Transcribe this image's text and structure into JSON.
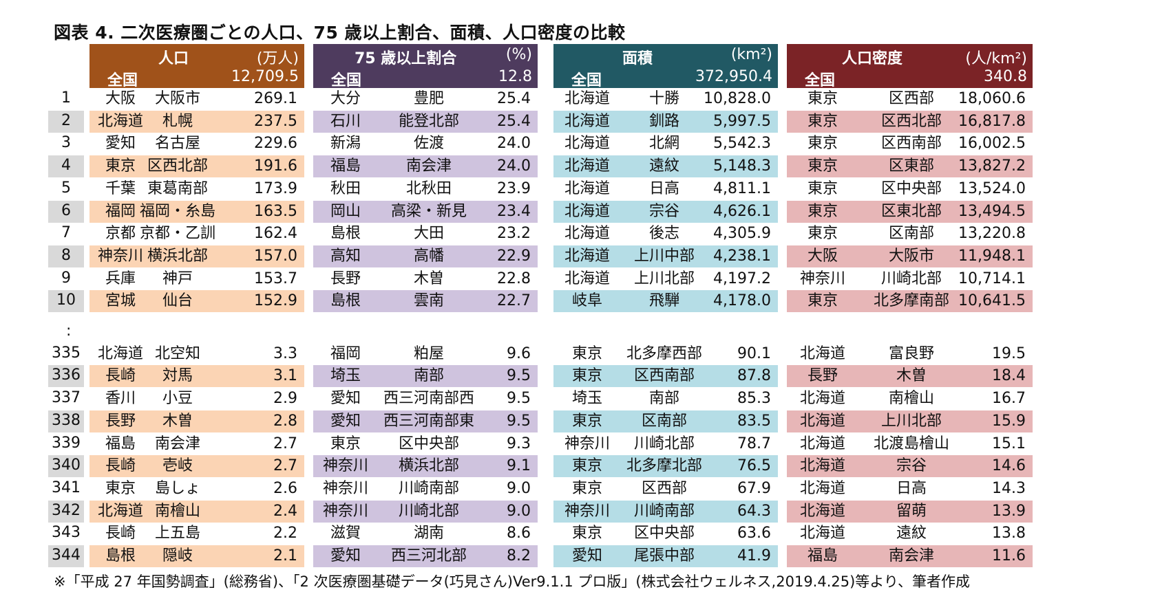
{
  "title": "図表 4.  二次医療圏ごとの人口、75 歳以上割合、面積、人口密度の比較",
  "colors": {
    "pop_header": "#a0521a",
    "pop_shade": "#fbd4b4",
    "age_header": "#4e3b5e",
    "age_shade": "#cfc3de",
    "area_header": "#215964",
    "area_shade": "#b5dde6",
    "dens_header": "#7b2326",
    "dens_shade": "#e7b6b7"
  },
  "headers": {
    "population": {
      "label": "人口",
      "unit": "(万人)",
      "national_label": "全国",
      "national_value": "12,709.5"
    },
    "age75": {
      "label": "75 歳以上割合",
      "unit": "(%)",
      "national_label": "全国",
      "national_value": "12.8"
    },
    "area": {
      "label": "面積",
      "unit": "(km²)",
      "national_label": "全国",
      "national_value": "372,950.4"
    },
    "density": {
      "label": "人口密度",
      "unit": "(人/km²)",
      "national_label": "全国",
      "national_value": "340.8"
    }
  },
  "ellipsis": ":",
  "rows": [
    {
      "rank": "1",
      "pop": [
        "大阪",
        "大阪市",
        "269.1"
      ],
      "age": [
        "大分",
        "豊肥",
        "25.4"
      ],
      "area": [
        "北海道",
        "十勝",
        "10,828.0"
      ],
      "dens": [
        "東京",
        "区西部",
        "18,060.6"
      ]
    },
    {
      "rank": "2",
      "pop": [
        "北海道",
        "札幌",
        "237.5"
      ],
      "age": [
        "石川",
        "能登北部",
        "25.4"
      ],
      "area": [
        "北海道",
        "釧路",
        "5,997.5"
      ],
      "dens": [
        "東京",
        "区西北部",
        "16,817.8"
      ]
    },
    {
      "rank": "3",
      "pop": [
        "愛知",
        "名古屋",
        "229.6"
      ],
      "age": [
        "新潟",
        "佐渡",
        "24.0"
      ],
      "area": [
        "北海道",
        "北網",
        "5,542.3"
      ],
      "dens": [
        "東京",
        "区西南部",
        "16,002.5"
      ]
    },
    {
      "rank": "4",
      "pop": [
        "東京",
        "区西北部",
        "191.6"
      ],
      "age": [
        "福島",
        "南会津",
        "24.0"
      ],
      "area": [
        "北海道",
        "遠紋",
        "5,148.3"
      ],
      "dens": [
        "東京",
        "区東部",
        "13,827.2"
      ]
    },
    {
      "rank": "5",
      "pop": [
        "千葉",
        "東葛南部",
        "173.9"
      ],
      "age": [
        "秋田",
        "北秋田",
        "23.9"
      ],
      "area": [
        "北海道",
        "日高",
        "4,811.1"
      ],
      "dens": [
        "東京",
        "区中央部",
        "13,524.0"
      ]
    },
    {
      "rank": "6",
      "pop": [
        "福岡",
        "福岡・糸島",
        "163.5"
      ],
      "age": [
        "岡山",
        "高梁・新見",
        "23.4"
      ],
      "area": [
        "北海道",
        "宗谷",
        "4,626.1"
      ],
      "dens": [
        "東京",
        "区東北部",
        "13,494.5"
      ]
    },
    {
      "rank": "7",
      "pop": [
        "京都",
        "京都・乙訓",
        "162.4"
      ],
      "age": [
        "島根",
        "大田",
        "23.2"
      ],
      "area": [
        "北海道",
        "後志",
        "4,305.9"
      ],
      "dens": [
        "東京",
        "区南部",
        "13,220.8"
      ]
    },
    {
      "rank": "8",
      "pop": [
        "神奈川",
        "横浜北部",
        "157.0"
      ],
      "age": [
        "高知",
        "高幡",
        "22.9"
      ],
      "area": [
        "北海道",
        "上川中部",
        "4,238.1"
      ],
      "dens": [
        "大阪",
        "大阪市",
        "11,948.1"
      ]
    },
    {
      "rank": "9",
      "pop": [
        "兵庫",
        "神戸",
        "153.7"
      ],
      "age": [
        "長野",
        "木曽",
        "22.8"
      ],
      "area": [
        "北海道",
        "上川北部",
        "4,197.2"
      ],
      "dens": [
        "神奈川",
        "川崎北部",
        "10,714.1"
      ]
    },
    {
      "rank": "10",
      "pop": [
        "宮城",
        "仙台",
        "152.9"
      ],
      "age": [
        "島根",
        "雲南",
        "22.7"
      ],
      "area": [
        "岐阜",
        "飛騨",
        "4,178.0"
      ],
      "dens": [
        "東京",
        "北多摩南部",
        "10,641.5"
      ]
    },
    {
      "rank": "335",
      "pop": [
        "北海道",
        "北空知",
        "3.3"
      ],
      "age": [
        "福岡",
        "粕屋",
        "9.6"
      ],
      "area": [
        "東京",
        "北多摩西部",
        "90.1"
      ],
      "dens": [
        "北海道",
        "富良野",
        "19.5"
      ]
    },
    {
      "rank": "336",
      "pop": [
        "長崎",
        "対馬",
        "3.1"
      ],
      "age": [
        "埼玉",
        "南部",
        "9.5"
      ],
      "area": [
        "東京",
        "区西南部",
        "87.8"
      ],
      "dens": [
        "長野",
        "木曽",
        "18.4"
      ]
    },
    {
      "rank": "337",
      "pop": [
        "香川",
        "小豆",
        "2.9"
      ],
      "age": [
        "愛知",
        "西三河南部西",
        "9.5"
      ],
      "area": [
        "埼玉",
        "南部",
        "85.3"
      ],
      "dens": [
        "北海道",
        "南檜山",
        "16.7"
      ]
    },
    {
      "rank": "338",
      "pop": [
        "長野",
        "木曽",
        "2.8"
      ],
      "age": [
        "愛知",
        "西三河南部東",
        "9.5"
      ],
      "area": [
        "東京",
        "区南部",
        "83.5"
      ],
      "dens": [
        "北海道",
        "上川北部",
        "15.9"
      ]
    },
    {
      "rank": "339",
      "pop": [
        "福島",
        "南会津",
        "2.7"
      ],
      "age": [
        "東京",
        "区中央部",
        "9.3"
      ],
      "area": [
        "神奈川",
        "川崎北部",
        "78.7"
      ],
      "dens": [
        "北海道",
        "北渡島檜山",
        "15.1"
      ]
    },
    {
      "rank": "340",
      "pop": [
        "長崎",
        "壱岐",
        "2.7"
      ],
      "age": [
        "神奈川",
        "横浜北部",
        "9.1"
      ],
      "area": [
        "東京",
        "北多摩北部",
        "76.5"
      ],
      "dens": [
        "北海道",
        "宗谷",
        "14.6"
      ]
    },
    {
      "rank": "341",
      "pop": [
        "東京",
        "島しょ",
        "2.6"
      ],
      "age": [
        "神奈川",
        "川崎南部",
        "9.0"
      ],
      "area": [
        "東京",
        "区西部",
        "67.9"
      ],
      "dens": [
        "北海道",
        "日高",
        "14.3"
      ]
    },
    {
      "rank": "342",
      "pop": [
        "北海道",
        "南檜山",
        "2.4"
      ],
      "age": [
        "神奈川",
        "川崎北部",
        "9.0"
      ],
      "area": [
        "神奈川",
        "川崎南部",
        "64.3"
      ],
      "dens": [
        "北海道",
        "留萌",
        "13.9"
      ]
    },
    {
      "rank": "343",
      "pop": [
        "長崎",
        "上五島",
        "2.2"
      ],
      "age": [
        "滋賀",
        "湖南",
        "8.6"
      ],
      "area": [
        "東京",
        "区中央部",
        "63.6"
      ],
      "dens": [
        "北海道",
        "遠紋",
        "13.8"
      ]
    },
    {
      "rank": "344",
      "pop": [
        "島根",
        "隠岐",
        "2.1"
      ],
      "age": [
        "愛知",
        "西三河北部",
        "8.2"
      ],
      "area": [
        "愛知",
        "尾張中部",
        "41.9"
      ],
      "dens": [
        "福島",
        "南会津",
        "11.6"
      ]
    }
  ],
  "footnote": "※「平成 27 年国勢調査」(総務省)、「2 次医療圏基礎データ(巧見さん)Ver9.1.1 プロ版」(株式会社ウェルネス,2019.4.25)等より、筆者作成"
}
